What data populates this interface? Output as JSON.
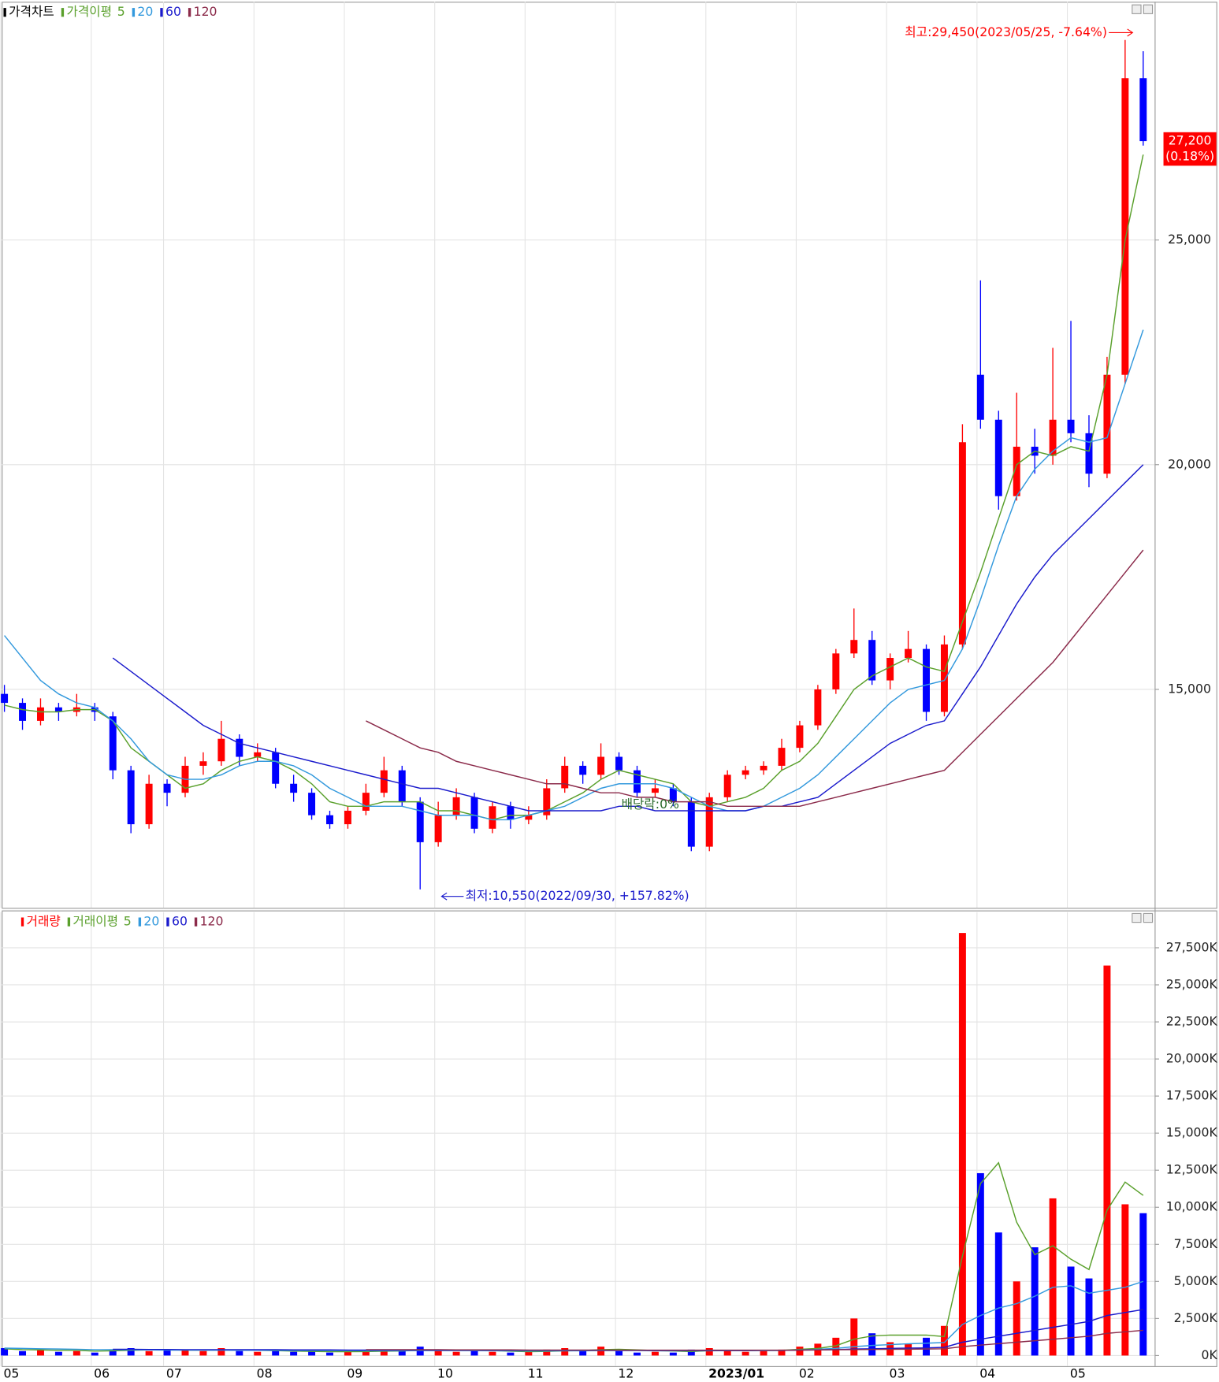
{
  "chart_data": [
    {
      "type": "candlestick",
      "name": "가격차트",
      "ma_title": "가격이평",
      "categories": [
        "05",
        null,
        null,
        null,
        null,
        "06",
        null,
        null,
        null,
        "07",
        null,
        null,
        null,
        null,
        "08",
        null,
        null,
        null,
        null,
        "09",
        null,
        null,
        null,
        null,
        "10",
        null,
        null,
        null,
        null,
        "11",
        null,
        null,
        null,
        null,
        "12",
        null,
        null,
        null,
        null,
        "2023/01",
        null,
        null,
        null,
        null,
        "02",
        null,
        null,
        null,
        null,
        "03",
        null,
        null,
        null,
        null,
        "04",
        null,
        null,
        null,
        null,
        "05",
        null,
        null,
        null,
        null
      ],
      "open": [
        14900,
        14700,
        14300,
        14600,
        14500,
        14600,
        14400,
        13200,
        12000,
        12900,
        12700,
        13300,
        13400,
        13900,
        13500,
        13600,
        12900,
        12700,
        12200,
        12000,
        12300,
        12700,
        13200,
        12500,
        11600,
        12200,
        12600,
        11900,
        12400,
        12100,
        12200,
        12800,
        13300,
        13100,
        13500,
        13200,
        12700,
        12800,
        12500,
        11500,
        12600,
        13100,
        13200,
        13300,
        13700,
        14200,
        15000,
        15800,
        16100,
        15200,
        15700,
        15900,
        14500,
        16000,
        22000,
        21000,
        19300,
        20400,
        20200,
        21000,
        20700,
        19800,
        22000,
        28600
      ],
      "high": [
        15100,
        14800,
        14800,
        14700,
        14900,
        14700,
        14500,
        13300,
        13100,
        13000,
        13500,
        13600,
        14300,
        14000,
        13800,
        13700,
        13100,
        12800,
        12300,
        12400,
        12900,
        13500,
        13300,
        12600,
        12500,
        12800,
        12700,
        12500,
        12500,
        12400,
        13000,
        13500,
        13400,
        13800,
        13600,
        13300,
        13000,
        12900,
        12600,
        12700,
        13200,
        13300,
        13400,
        13900,
        14300,
        15100,
        15900,
        16800,
        16300,
        15800,
        16300,
        16000,
        16200,
        20900,
        24100,
        21200,
        21600,
        20800,
        22600,
        23200,
        21100,
        22400,
        29450,
        29200
      ],
      "low": [
        14500,
        14100,
        14200,
        14300,
        14400,
        14300,
        13000,
        11800,
        11900,
        12400,
        12600,
        13100,
        13300,
        13300,
        13400,
        12800,
        12500,
        12100,
        11900,
        11900,
        12200,
        12600,
        12400,
        10550,
        11500,
        12100,
        11800,
        11800,
        11900,
        12000,
        12100,
        12700,
        12900,
        13000,
        13100,
        12600,
        12600,
        12400,
        11400,
        11400,
        12500,
        13000,
        13100,
        13200,
        13600,
        14100,
        14900,
        15700,
        15100,
        15000,
        15600,
        14300,
        14400,
        15900,
        20800,
        19000,
        19200,
        19800,
        20000,
        20500,
        19500,
        19700,
        21800,
        27100
      ],
      "close": [
        14700,
        14300,
        14600,
        14500,
        14600,
        14500,
        13200,
        12000,
        12900,
        12700,
        13300,
        13400,
        13900,
        13500,
        13600,
        12900,
        12700,
        12200,
        12000,
        12300,
        12700,
        13200,
        12500,
        11600,
        12200,
        12600,
        11900,
        12400,
        12100,
        12200,
        12800,
        13300,
        13100,
        13500,
        13200,
        12700,
        12800,
        12500,
        11500,
        12600,
        13100,
        13200,
        13300,
        13700,
        14200,
        15000,
        15800,
        16100,
        15200,
        15700,
        15900,
        14500,
        16000,
        20500,
        21000,
        19300,
        20400,
        20200,
        21000,
        20700,
        19800,
        22000,
        28600,
        27200
      ],
      "up_color": "#ff0000",
      "down_color": "#0000ff",
      "moving_averages": [
        {
          "name": "5",
          "color": "#5aa02c",
          "values": [
            14650,
            14550,
            14500,
            14500,
            14550,
            14550,
            14300,
            13700,
            13400,
            13100,
            12800,
            12900,
            13200,
            13400,
            13500,
            13400,
            13200,
            12900,
            12500,
            12400,
            12400,
            12500,
            12500,
            12500,
            12300,
            12300,
            12200,
            12100,
            12200,
            12200,
            12300,
            12500,
            12700,
            13000,
            13200,
            13100,
            13000,
            12900,
            12500,
            12400,
            12500,
            12600,
            12800,
            13200,
            13400,
            13800,
            14400,
            15000,
            15300,
            15500,
            15700,
            15500,
            15400,
            16500,
            17600,
            18800,
            20000,
            20300,
            20200,
            20400,
            20300,
            22000,
            25000,
            26900
          ]
        },
        {
          "name": "20",
          "color": "#3399dd",
          "values": [
            16200,
            15700,
            15200,
            14900,
            14700,
            14600,
            14300,
            13900,
            13400,
            13100,
            13000,
            13000,
            13100,
            13300,
            13400,
            13400,
            13300,
            13100,
            12800,
            12600,
            12400,
            12400,
            12400,
            12300,
            12200,
            12200,
            12200,
            12100,
            12100,
            12200,
            12300,
            12400,
            12600,
            12800,
            12900,
            12900,
            12900,
            12800,
            12600,
            12400,
            12300,
            12300,
            12400,
            12600,
            12800,
            13100,
            13500,
            13900,
            14300,
            14700,
            15000,
            15100,
            15200,
            15900,
            17000,
            18200,
            19300,
            19900,
            20300,
            20600,
            20500,
            20600,
            21800,
            23000
          ]
        },
        {
          "name": "60",
          "color": "#1a1acc",
          "values": [
            null,
            null,
            null,
            null,
            null,
            null,
            15700,
            15400,
            15100,
            14800,
            14500,
            14200,
            14000,
            13800,
            13700,
            13600,
            13500,
            13400,
            13300,
            13200,
            13100,
            13000,
            12900,
            12800,
            12800,
            12700,
            12600,
            12500,
            12400,
            12300,
            12300,
            12300,
            12300,
            12300,
            12400,
            12400,
            12300,
            12300,
            12300,
            12300,
            12300,
            12300,
            12400,
            12400,
            12500,
            12600,
            12900,
            13200,
            13500,
            13800,
            14000,
            14200,
            14300,
            14900,
            15500,
            16200,
            16900,
            17500,
            18000,
            18400,
            18800,
            19200,
            19600,
            20000
          ]
        },
        {
          "name": "120",
          "color": "#8b2a4a",
          "values": [
            null,
            null,
            null,
            null,
            null,
            null,
            null,
            null,
            null,
            null,
            null,
            null,
            null,
            null,
            null,
            null,
            null,
            null,
            null,
            null,
            14300,
            14100,
            13900,
            13700,
            13600,
            13400,
            13300,
            13200,
            13100,
            13000,
            12900,
            12900,
            12800,
            12700,
            12700,
            12600,
            12600,
            12500,
            12500,
            12500,
            12400,
            12400,
            12400,
            12400,
            12400,
            12500,
            12600,
            12700,
            12800,
            12900,
            13000,
            13100,
            13200,
            13600,
            14000,
            14400,
            14800,
            15200,
            15600,
            16100,
            16600,
            17100,
            17600,
            18100
          ]
        }
      ],
      "ylim": [
        10140,
        30300
      ],
      "yticks": [
        {
          "value": 15000,
          "label": "15,000"
        },
        {
          "value": 20000,
          "label": "20,000"
        },
        {
          "value": 25000,
          "label": "25,000"
        }
      ],
      "grid": true,
      "annotations": {
        "high": "최고:29,450(2023/05/25, -7.64%)",
        "low": "최저:10,550(2022/09/30, +157.82%)",
        "event": "배당락:0%",
        "last_price": "27,200",
        "last_change": "(0.18%)"
      }
    },
    {
      "type": "bar",
      "name": "거래량",
      "ma_title": "거래이평",
      "values": [
        500,
        300,
        400,
        250,
        300,
        200,
        400,
        500,
        300,
        350,
        400,
        300,
        500,
        300,
        250,
        300,
        250,
        300,
        200,
        250,
        300,
        400,
        300,
        600,
        300,
        250,
        300,
        250,
        200,
        250,
        400,
        500,
        300,
        600,
        300,
        200,
        250,
        200,
        400,
        500,
        300,
        250,
        300,
        400,
        600,
        800,
        1200,
        2500,
        1500,
        900,
        800,
        1200,
        2000,
        28500,
        12300,
        8300,
        5000,
        7300,
        10600,
        6000,
        5200,
        26300,
        10200,
        9600
      ],
      "moving_averages": [
        {
          "name": "5",
          "color": "#5aa02c",
          "values": [
            450,
            400,
            380,
            350,
            350,
            300,
            320,
            350,
            380,
            400,
            370,
            360,
            380,
            370,
            350,
            330,
            300,
            280,
            260,
            260,
            270,
            290,
            310,
            380,
            380,
            360,
            350,
            340,
            290,
            260,
            280,
            320,
            330,
            400,
            420,
            380,
            330,
            310,
            270,
            330,
            330,
            330,
            350,
            350,
            420,
            480,
            660,
            1100,
            1320,
            1380,
            1380,
            1380,
            1280,
            6700,
            11600,
            13000,
            9000,
            6800,
            7400,
            6500,
            5800,
            9800,
            11700,
            10800
          ]
        },
        {
          "name": "20",
          "color": "#3399dd",
          "values": [
            500,
            480,
            460,
            440,
            420,
            400,
            390,
            380,
            380,
            370,
            370,
            360,
            360,
            350,
            350,
            350,
            340,
            340,
            330,
            330,
            320,
            320,
            320,
            330,
            330,
            330,
            330,
            320,
            320,
            310,
            310,
            320,
            320,
            330,
            330,
            330,
            320,
            320,
            320,
            320,
            330,
            330,
            330,
            340,
            380,
            420,
            480,
            600,
            680,
            740,
            790,
            830,
            880,
            2100,
            2700,
            3200,
            3500,
            4000,
            4600,
            4700,
            4200,
            4400,
            4600,
            5000
          ]
        },
        {
          "name": "60",
          "color": "#1a1acc",
          "values": [
            null,
            null,
            null,
            null,
            null,
            null,
            420,
            420,
            410,
            410,
            400,
            400,
            400,
            390,
            390,
            390,
            380,
            380,
            380,
            370,
            370,
            370,
            370,
            370,
            360,
            360,
            360,
            360,
            350,
            350,
            350,
            350,
            350,
            350,
            350,
            350,
            340,
            340,
            340,
            340,
            340,
            340,
            350,
            350,
            360,
            380,
            400,
            440,
            460,
            480,
            500,
            520,
            550,
            900,
            1100,
            1300,
            1500,
            1700,
            1900,
            2100,
            2300,
            2700,
            2900,
            3100
          ]
        },
        {
          "name": "120",
          "color": "#8b2a4a",
          "values": [
            null,
            null,
            null,
            null,
            null,
            null,
            null,
            null,
            null,
            null,
            null,
            null,
            null,
            null,
            null,
            null,
            null,
            null,
            null,
            null,
            400,
            400,
            390,
            390,
            390,
            380,
            380,
            380,
            380,
            370,
            370,
            370,
            370,
            370,
            360,
            360,
            360,
            360,
            360,
            360,
            360,
            360,
            360,
            360,
            370,
            380,
            390,
            400,
            410,
            420,
            430,
            440,
            460,
            600,
            700,
            800,
            900,
            1000,
            1100,
            1200,
            1300,
            1500,
            1600,
            1700
          ]
        }
      ],
      "ylim": [
        0,
        29900
      ],
      "yticks": [
        {
          "value": 0,
          "label": "0K"
        },
        {
          "value": 2500,
          "label": "2,500K"
        },
        {
          "value": 5000,
          "label": "5,000K"
        },
        {
          "value": 7500,
          "label": "7,500K"
        },
        {
          "value": 10000,
          "label": "10,000K"
        },
        {
          "value": 12500,
          "label": "12,500K"
        },
        {
          "value": 15000,
          "label": "15,000K"
        },
        {
          "value": 17500,
          "label": "17,500K"
        },
        {
          "value": 20000,
          "label": "20,000K"
        },
        {
          "value": 22500,
          "label": "22,500K"
        },
        {
          "value": 25000,
          "label": "25,000K"
        },
        {
          "value": 27500,
          "label": "27,500K"
        }
      ],
      "grid": true
    }
  ]
}
